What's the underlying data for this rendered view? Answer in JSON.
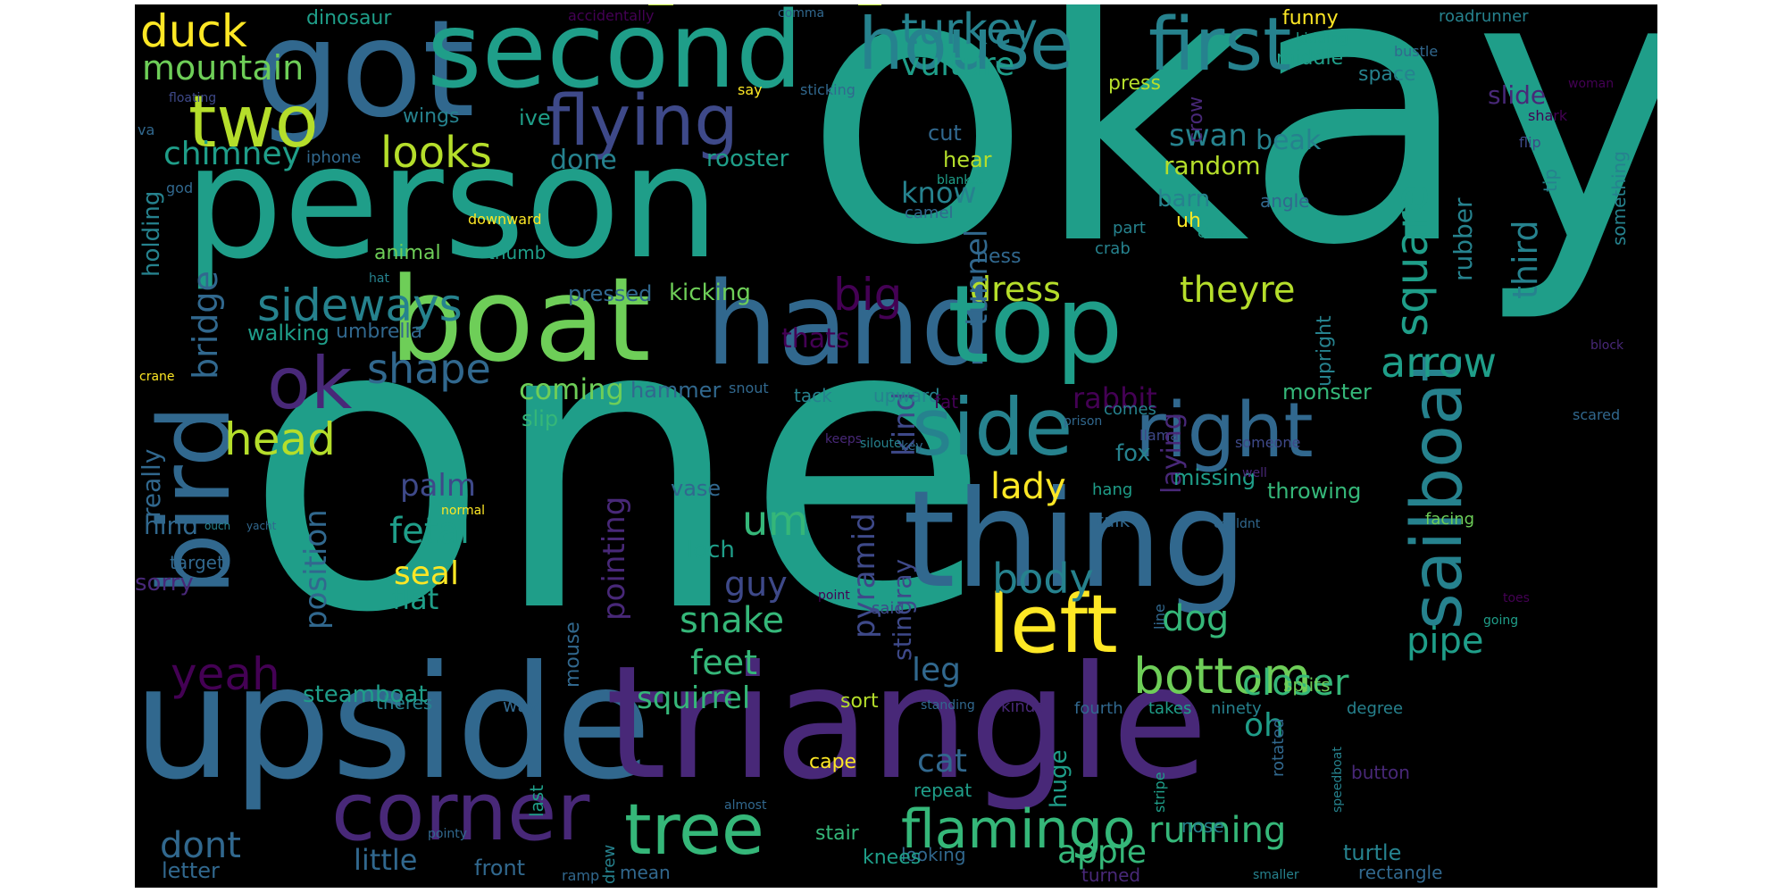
{
  "words": [
    "okay",
    "one",
    "person",
    "upside",
    "triangle",
    "got",
    "second",
    "boat",
    "hand",
    "top",
    "thing",
    "house",
    "first",
    "bird",
    "left",
    "sailboat",
    "right",
    "side",
    "corner",
    "flying",
    "tree",
    "two",
    "ok",
    "flamingo",
    "bottom",
    "head",
    "sideways",
    "duck",
    "mountain",
    "turkey",
    "vulture",
    "looks",
    "chimney",
    "shape",
    "yeah",
    "dress",
    "big",
    "square",
    "theyre",
    "arrow",
    "um",
    "body",
    "lady",
    "palm",
    "fetal",
    "seal",
    "flat",
    "guy",
    "snake",
    "feet",
    "dog",
    "pipe",
    "running",
    "closer",
    "oh",
    "apple",
    "little",
    "dont",
    "letter",
    "cat",
    "leg",
    "squirrel",
    "pointing",
    "pyramid",
    "kind",
    "stingray",
    "bridge",
    "holding",
    "tunnel",
    "know",
    "swan",
    "beak",
    "random",
    "barn",
    "position",
    "hind",
    "rabbit",
    "third",
    "rubber",
    "upright",
    "done",
    "rooster",
    "cut",
    "hear",
    "uh",
    "ness",
    "crab",
    "part",
    "wings",
    "ive",
    "dinosaur",
    "funny",
    "roadrunner",
    "kidding",
    "middle",
    "press",
    "space",
    "crow",
    "slide",
    "shark",
    "flip",
    "tip",
    "something",
    "angle",
    "camel",
    "blanket",
    "clue",
    "iphone",
    "god",
    "floating",
    "va",
    "say",
    "sticking",
    "accidentally",
    "comma",
    "woman",
    "bustle",
    "downward",
    "animal",
    "thumb",
    "hat",
    "pressed",
    "kicking",
    "walking",
    "umbrella",
    "thats",
    "coming",
    "hammer",
    "slip",
    "crane",
    "snout",
    "tack",
    "upward",
    "fat",
    "monster",
    "block",
    "scared",
    "comes",
    "llama",
    "someone",
    "prison",
    "keeps",
    "siloute",
    "key",
    "fox",
    "laying",
    "missing",
    "throwing",
    "well",
    "hang",
    "talk",
    "couldnt",
    "ouch",
    "yacht",
    "normal",
    "really",
    "vase",
    "loch",
    "mouse",
    "way",
    "target",
    "sorry",
    "point",
    "said",
    "line",
    "toes",
    "going",
    "facing",
    "theres",
    "steamboat",
    "sort",
    "standing",
    "kinda",
    "huge",
    "fourth",
    "takes",
    "ninety",
    "degree",
    "splits",
    "rotated",
    "looking",
    "mean",
    "front",
    "drew",
    "ramp",
    "pointy",
    "almost",
    "last",
    "stair",
    "knees",
    "cape",
    "repeat",
    "stripe",
    "nose",
    "speedboat",
    "button",
    "turned",
    "smaller",
    "rectangle",
    "turtle"
  ]
}
